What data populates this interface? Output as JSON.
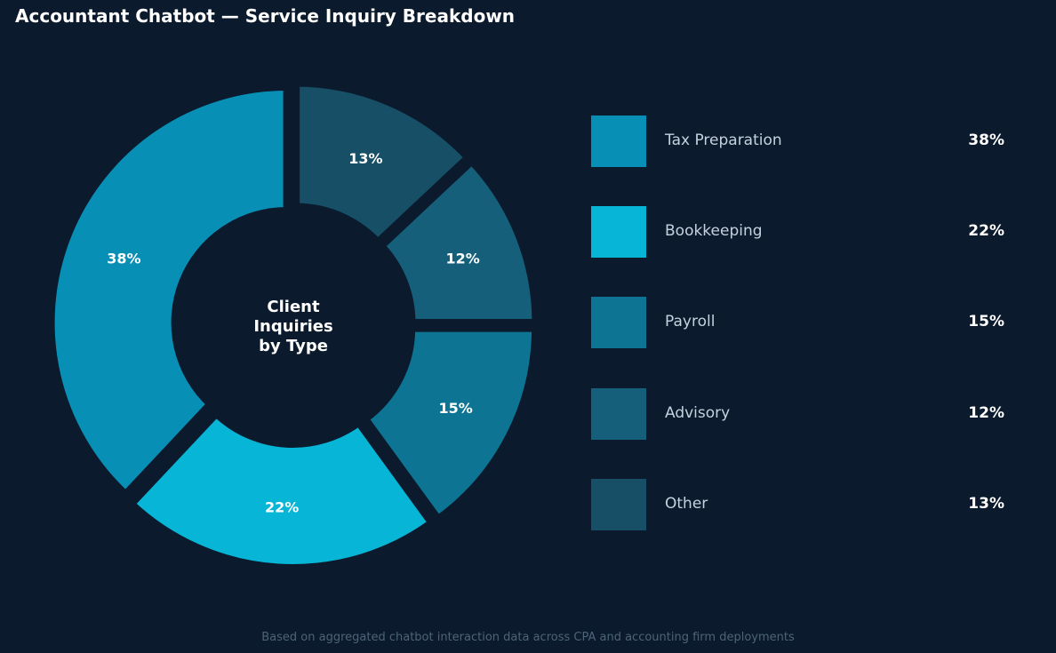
{
  "page": {
    "title": "Accountant Chatbot — Service Inquiry Breakdown",
    "footnote": "Based on aggregated chatbot interaction data across CPA and accounting firm deployments"
  },
  "chart_data": {
    "type": "pie",
    "title": "Accountant Chatbot — Service Inquiry Breakdown",
    "center_label": [
      "Client",
      "Inquiries",
      "by Type"
    ],
    "donut": true,
    "exploded": true,
    "legend_position": "right",
    "unit": "%",
    "categories": [
      "Tax Preparation",
      "Bookkeeping",
      "Payroll",
      "Advisory",
      "Other"
    ],
    "values": [
      38,
      22,
      15,
      12,
      13
    ],
    "value_labels": [
      "38%",
      "22%",
      "15%",
      "12%",
      "13%"
    ],
    "colors": [
      "#088fb6",
      "#07b5d6",
      "#0e7493",
      "#155f7a",
      "#164f66"
    ]
  }
}
